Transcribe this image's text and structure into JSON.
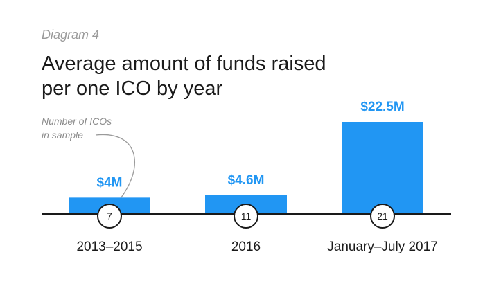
{
  "header": {
    "subtitle": "Diagram 4",
    "title_line1": "Average amount of funds raised",
    "title_line2": "per one ICO by year"
  },
  "annotation": {
    "line1": "Number of ICOs",
    "line2": "in sample"
  },
  "colors": {
    "bar": "#2196f3",
    "value_label": "#2196f3",
    "axis": "#1a1a1a",
    "annotation": "#8a8a8a"
  },
  "chart_data": {
    "type": "bar",
    "categories": [
      "2013–2015",
      "2016",
      "January–July 2017"
    ],
    "values": [
      4,
      4.6,
      22.5
    ],
    "value_labels": [
      "$4M",
      "$4.6M",
      "$22.5M"
    ],
    "sample_counts": [
      "7",
      "11",
      "21"
    ],
    "unit": "$M",
    "ylim": [
      0,
      22.5
    ],
    "grid": false,
    "legend": "none"
  }
}
